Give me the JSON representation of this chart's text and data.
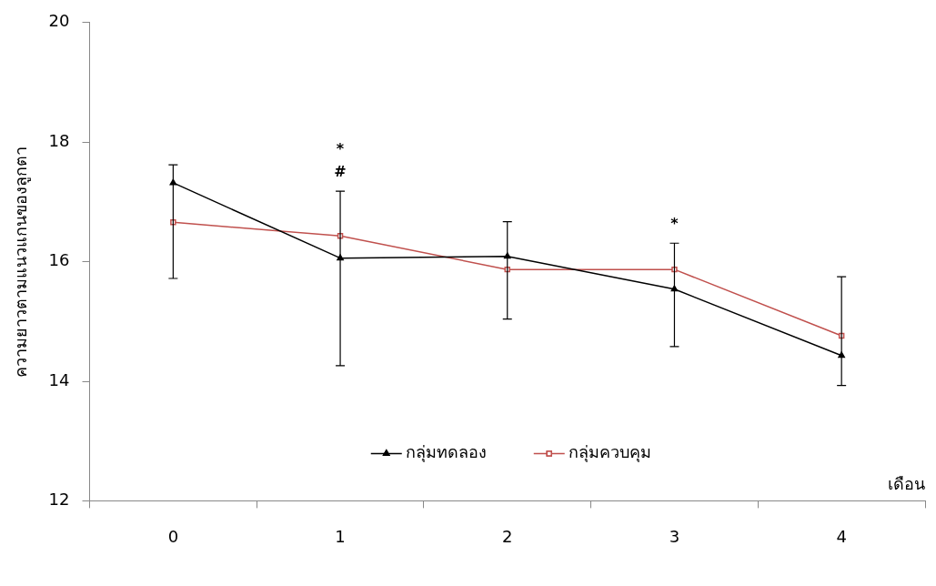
{
  "chart_data": {
    "type": "line",
    "xlabel": "เดือน",
    "ylabel": "ความยาวตามแนวแกนของลูกตา",
    "categories": [
      "0",
      "1",
      "2",
      "3",
      "4"
    ],
    "series": [
      {
        "name": "กลุ่มทดลอง",
        "color": "#000000",
        "marker": "triangle",
        "values": [
          17.32,
          16.06,
          16.09,
          15.54,
          14.43
        ],
        "errors": [
          [
            15.72,
            17.62
          ],
          [
            14.26,
            17.18
          ],
          [
            15.04,
            16.67
          ],
          [
            14.58,
            16.31
          ],
          [
            13.93,
            15.75
          ]
        ]
      },
      {
        "name": "กลุ่มควบคุม",
        "color": "#c0504d",
        "marker": "square",
        "values": [
          16.66,
          16.43,
          15.87,
          15.87,
          14.76
        ]
      }
    ],
    "ylim": [
      12,
      20
    ],
    "yticks": [
      12,
      14,
      16,
      18,
      20
    ],
    "grid": false,
    "legend": "bottom",
    "annotations": [
      "*",
      "#",
      "*"
    ]
  }
}
